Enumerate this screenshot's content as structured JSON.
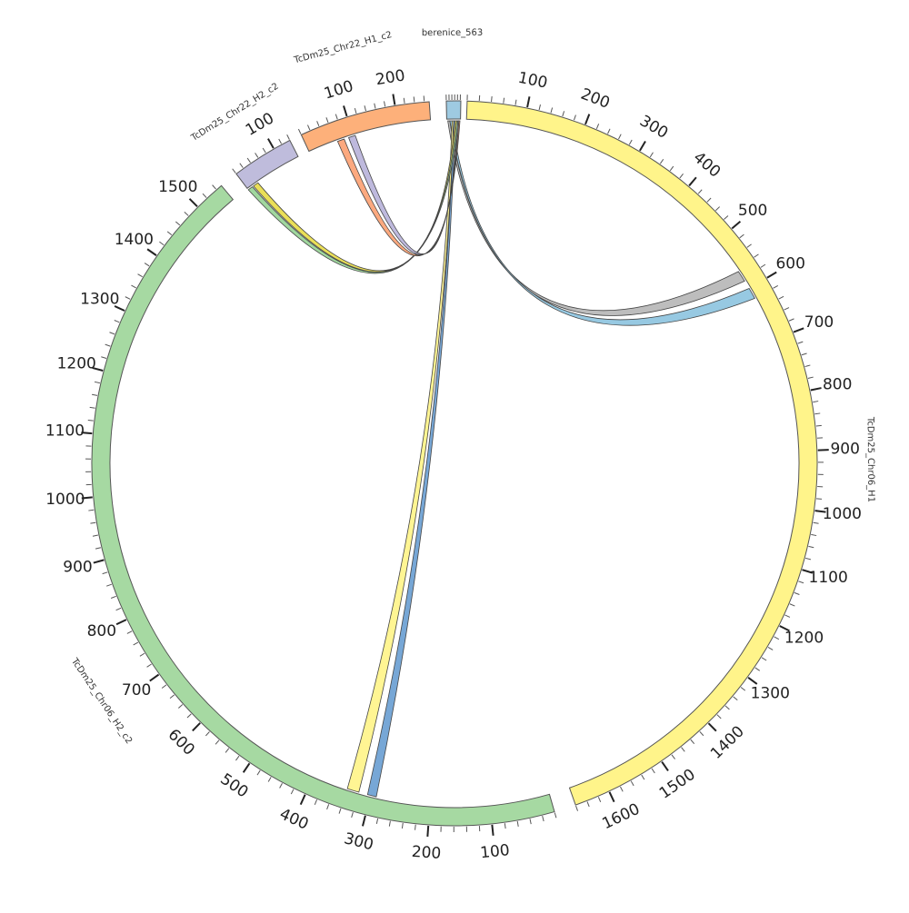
{
  "diagram": {
    "type": "circos",
    "segments": [
      {
        "id": "berenice_563",
        "name": "berenice_563",
        "length": 26,
        "color": "#9ecae1",
        "ticks_labeled": []
      },
      {
        "id": "TcDm25_Chr06_H1",
        "name": "TcDm25_Chr06_H1",
        "length": 1660,
        "color": "#fff48a",
        "ticks_labeled": [
          100,
          200,
          300,
          400,
          500,
          600,
          700,
          800,
          900,
          1000,
          1100,
          1200,
          1300,
          1400,
          1500,
          1600
        ]
      },
      {
        "id": "TcDm25_Chr06_H2_c2",
        "name": "TcDm25_Chr06_H2_c2",
        "length": 1550,
        "color": "#a6d9a2",
        "ticks_labeled": [
          100,
          200,
          300,
          400,
          500,
          600,
          700,
          800,
          900,
          1000,
          1100,
          1200,
          1300,
          1400,
          1500
        ]
      },
      {
        "id": "TcDm25_Chr22_H2_c2",
        "name": "TcDm25_Chr22_H2_c2",
        "length": 140,
        "color": "#bfbcdc",
        "ticks_labeled": [
          100
        ]
      },
      {
        "id": "TcDm25_Chr22_H1_c2",
        "name": "TcDm25_Chr22_H1_c2",
        "length": 270,
        "color": "#fdb07a",
        "ticks_labeled": [
          100,
          200
        ]
      }
    ],
    "links": [
      {
        "from_segment": "berenice_563",
        "from_range": [
          2,
          6
        ],
        "to_segment": "TcDm25_Chr06_H1",
        "to_range": [
          565,
          585
        ],
        "color": "#b7b7b7"
      },
      {
        "from_segment": "berenice_563",
        "from_range": [
          6,
          10
        ],
        "to_segment": "TcDm25_Chr06_H1",
        "to_range": [
          600,
          620
        ],
        "color": "#8ec4e0"
      },
      {
        "from_segment": "berenice_563",
        "from_range": [
          10,
          13
        ],
        "to_segment": "TcDm25_Chr06_H2_c2",
        "to_range": [
          320,
          340
        ],
        "color": "#fff48a"
      },
      {
        "from_segment": "berenice_563",
        "from_range": [
          13,
          16
        ],
        "to_segment": "TcDm25_Chr06_H2_c2",
        "to_range": [
          290,
          305
        ],
        "color": "#6b9fd2"
      },
      {
        "from_segment": "berenice_563",
        "from_range": [
          16,
          19
        ],
        "to_segment": "TcDm25_Chr22_H2_c2",
        "to_range": [
          15,
          28
        ],
        "color": "#e8dc4a"
      },
      {
        "from_segment": "berenice_563",
        "from_range": [
          19,
          22
        ],
        "to_segment": "TcDm25_Chr22_H2_c2",
        "to_range": [
          0,
          12
        ],
        "color": "#98d496"
      },
      {
        "from_segment": "berenice_563",
        "from_range": [
          21,
          23
        ],
        "to_segment": "TcDm25_Chr22_H1_c2",
        "to_range": [
          90,
          105
        ],
        "color": "#b9b3da"
      },
      {
        "from_segment": "berenice_563",
        "from_range": [
          23,
          25
        ],
        "to_segment": "TcDm25_Chr22_H1_c2",
        "to_range": [
          65,
          80
        ],
        "color": "#fca274"
      }
    ]
  }
}
